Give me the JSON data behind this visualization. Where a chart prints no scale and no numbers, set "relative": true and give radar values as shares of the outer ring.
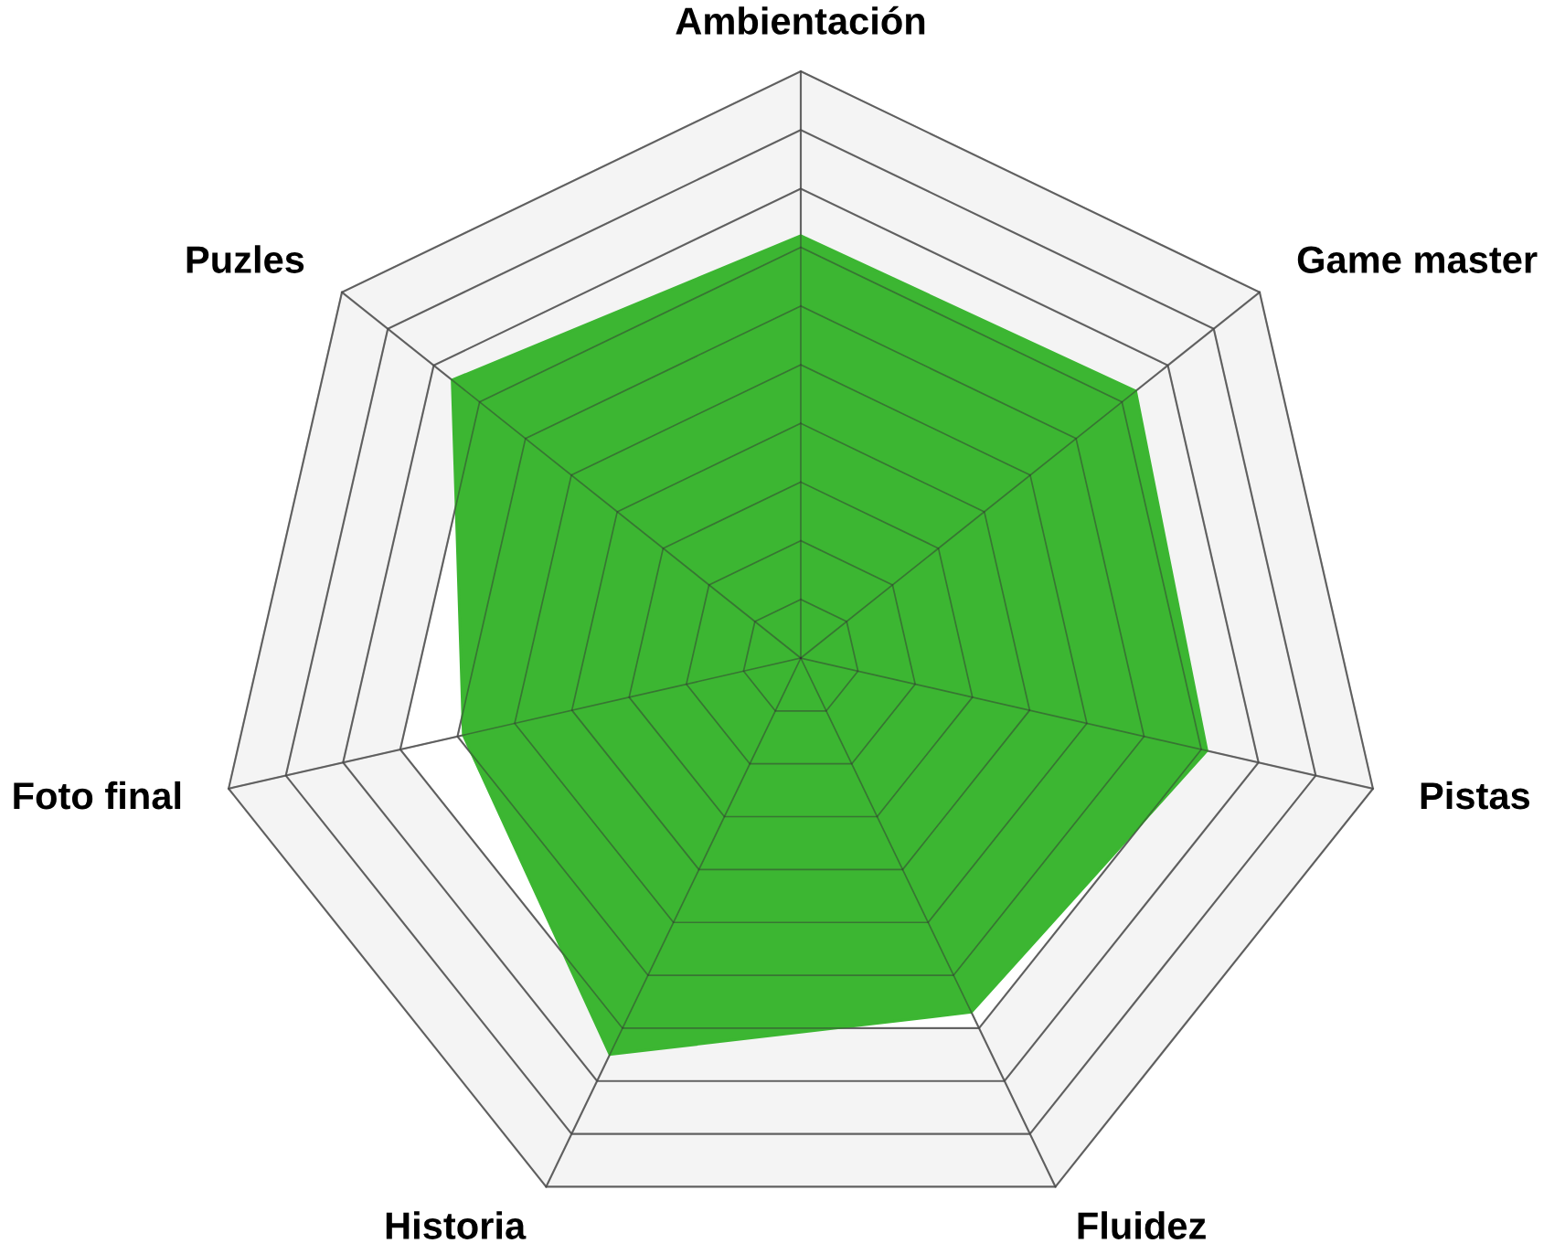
{
  "chart_data": {
    "type": "radar",
    "relative": true,
    "grid": true,
    "categories": [
      "Ambientación",
      "Game master",
      "Pistas",
      "Fluidez",
      "Historia",
      "Foto final",
      "Puzles"
    ],
    "series": [
      {
        "color": "#3cb632",
        "values": [
          0.72,
          0.73,
          0.71,
          0.67,
          0.75,
          0.59,
          0.76
        ]
      }
    ]
  }
}
